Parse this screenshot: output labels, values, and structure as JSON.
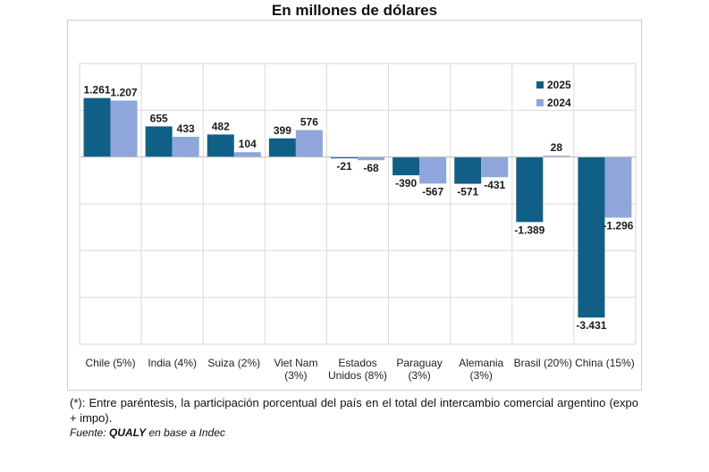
{
  "chart_data": {
    "type": "bar",
    "subtitle": "En millones de dólares",
    "categories": [
      [
        "Chile (5%)"
      ],
      [
        "India (4%)"
      ],
      [
        "Suiza (2%)"
      ],
      [
        "Viet Nam",
        "(3%)"
      ],
      [
        "Estados",
        "Unidos (8%)"
      ],
      [
        "Paraguay",
        "(3%)"
      ],
      [
        "Alemania",
        "(3%)"
      ],
      [
        "Brasil (20%)"
      ],
      [
        "China (15%)"
      ]
    ],
    "series": [
      {
        "name": "2025",
        "color": "#0f5f86",
        "values": [
          1261,
          655,
          482,
          399,
          -21,
          -390,
          -571,
          -1389,
          -3431
        ],
        "labels": [
          "1.261",
          "655",
          "482",
          "399",
          "-21",
          "-390",
          "-571",
          "-1.389",
          "-3.431"
        ]
      },
      {
        "name": "2024",
        "color": "#8ea6dc",
        "values": [
          1207,
          433,
          104,
          576,
          -68,
          -567,
          -431,
          28,
          -1296
        ],
        "labels": [
          "1.207",
          "433",
          "104",
          "576",
          "-68",
          "-567",
          "-431",
          "28",
          "-1.296"
        ]
      }
    ],
    "ylim": [
      -4000,
      2000
    ],
    "grid": true,
    "legend_position": "top-right"
  },
  "footnote": "(*): Entre paréntesis, la participación porcentual del país en el total del intercambio comercial argentino (expo + impo).",
  "source": {
    "prefix": "Fuente: ",
    "bold": "QUALY",
    "suffix": " en base a Indec"
  }
}
